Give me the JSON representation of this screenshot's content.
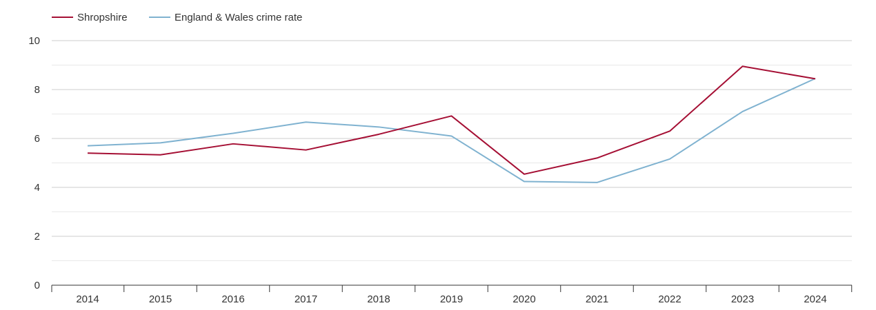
{
  "chart_data": {
    "type": "line",
    "title": "",
    "xlabel": "",
    "ylabel": "",
    "categories": [
      "2014",
      "2015",
      "2016",
      "2017",
      "2018",
      "2019",
      "2020",
      "2021",
      "2022",
      "2023",
      "2024"
    ],
    "ylim": [
      0,
      10
    ],
    "y_ticks": [
      0,
      2,
      4,
      6,
      8,
      10
    ],
    "grid": true,
    "legend_position": "top-left",
    "series": [
      {
        "name": "Shropshire",
        "color": "#a50f34",
        "values": [
          5.4,
          5.33,
          5.78,
          5.53,
          6.17,
          6.92,
          4.54,
          5.2,
          6.3,
          8.95,
          8.44
        ]
      },
      {
        "name": "England & Wales crime rate",
        "color": "#7fb2d0",
        "values": [
          5.7,
          5.82,
          6.21,
          6.67,
          6.47,
          6.1,
          4.24,
          4.2,
          5.16,
          7.1,
          8.45
        ]
      }
    ]
  }
}
